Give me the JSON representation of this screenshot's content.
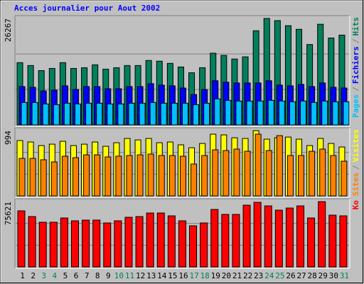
{
  "title": "Acces journalier pour Aout 2002",
  "legend_separator": "/",
  "chart_data": [
    {
      "type": "bar",
      "categories": [
        "1",
        "2",
        "3",
        "4",
        "5",
        "6",
        "7",
        "8",
        "9",
        "10",
        "11",
        "12",
        "13",
        "14",
        "15",
        "16",
        "17",
        "18",
        "19",
        "20",
        "21",
        "22",
        "23",
        "24",
        "25",
        "26",
        "27",
        "28",
        "29",
        "30",
        "31"
      ],
      "category_colors": [
        "#000000",
        "#000000",
        "#00805c",
        "#00805c",
        "#000000",
        "#000000",
        "#000000",
        "#000000",
        "#000000",
        "#00805c",
        "#00805c",
        "#000000",
        "#000000",
        "#000000",
        "#000000",
        "#000000",
        "#00805c",
        "#00805c",
        "#000000",
        "#000000",
        "#000000",
        "#000000",
        "#000000",
        "#00805c",
        "#00805c",
        "#000000",
        "#000000",
        "#000000",
        "#000000",
        "#000000",
        "#00805c"
      ],
      "ylim": [
        0,
        26267
      ],
      "yticks": [
        26267
      ],
      "series": [
        {
          "name": "Hits",
          "color": "#00805c",
          "values": [
            15368,
            14653,
            13402,
            13938,
            15368,
            13938,
            14117,
            14832,
            13760,
            14117,
            14653,
            14653,
            15904,
            15725,
            15189,
            14296,
            12866,
            14117,
            17691,
            17155,
            16261,
            16797,
            23231,
            26267,
            25733,
            24482,
            23588,
            19835,
            24839,
            21444,
            22158
          ]
        },
        {
          "name": "Fichiers",
          "color": "#0000ff",
          "values": [
            9471,
            9292,
            8399,
            8578,
            9650,
            8756,
            9471,
            9471,
            8935,
            8935,
            9471,
            9471,
            10186,
            9829,
            9650,
            9114,
            7505,
            8756,
            10901,
            10543,
            10365,
            10365,
            10365,
            10901,
            9829,
            9650,
            10007,
            9471,
            10365,
            9292,
            9114
          ]
        },
        {
          "name": "Pages",
          "color": "#00c0ff",
          "values": [
            5540,
            5540,
            5182,
            5004,
            5361,
            5182,
            5361,
            5361,
            5182,
            5182,
            5361,
            5361,
            5540,
            5361,
            5361,
            5361,
            5004,
            5361,
            6433,
            6076,
            5897,
            5897,
            5897,
            6076,
            5897,
            5718,
            5897,
            5540,
            5897,
            5718,
            5718
          ]
        }
      ]
    },
    {
      "type": "bar",
      "ylim": [
        0,
        994
      ],
      "yticks": [
        994
      ],
      "series": [
        {
          "name": "Visites",
          "color": "#ffff00",
          "values": [
            843,
            821,
            767,
            788,
            832,
            767,
            788,
            821,
            756,
            810,
            875,
            853,
            875,
            810,
            821,
            778,
            734,
            799,
            940,
            929,
            886,
            875,
            994,
            864,
            886,
            896,
            864,
            767,
            875,
            799,
            745
          ]
        },
        {
          "name": "Sites",
          "color": "#ff8000",
          "values": [
            572,
            572,
            551,
            518,
            605,
            583,
            626,
            626,
            594,
            605,
            616,
            626,
            637,
            616,
            616,
            605,
            486,
            616,
            702,
            691,
            713,
            680,
            940,
            691,
            918,
            616,
            616,
            680,
            713,
            616,
            529
          ]
        }
      ]
    },
    {
      "type": "bar",
      "ylim": [
        0,
        75621
      ],
      "yticks": [
        75621
      ],
      "series": [
        {
          "name": "Ko",
          "color": "#ff0000",
          "values": [
            64936,
            58360,
            51784,
            51784,
            56716,
            53428,
            54250,
            54250,
            50963,
            53428,
            57538,
            58360,
            62471,
            62471,
            59183,
            53428,
            47674,
            50963,
            66580,
            60826,
            60826,
            71512,
            74799,
            70690,
            65758,
            68224,
            70690,
            56716,
            75621,
            60004,
            59183
          ]
        }
      ]
    }
  ]
}
